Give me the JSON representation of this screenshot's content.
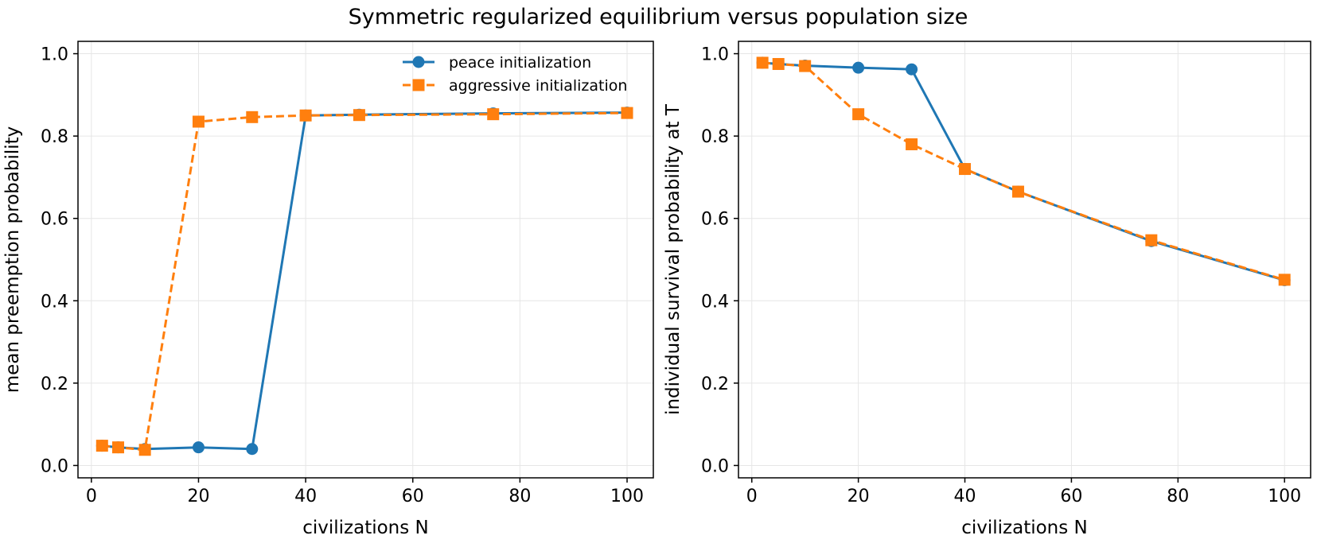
{
  "figure": {
    "suptitle": "Symmetric regularized equilibrium versus population size"
  },
  "colors": {
    "peace": "#1f77b4",
    "aggressive": "#ff7f0e",
    "grid": "#e6e6e6",
    "axes": "#000000"
  },
  "chart_data": [
    {
      "type": "line",
      "title": "",
      "xlabel": "civilizations N",
      "ylabel": "mean preemption probability",
      "xlim": [
        -2.5,
        104.9
      ],
      "ylim": [
        -0.03,
        1.03
      ],
      "xticks": [
        0,
        20,
        40,
        60,
        80,
        100
      ],
      "yticks": [
        0.0,
        0.2,
        0.4,
        0.6,
        0.8,
        1.0
      ],
      "ytick_labels": [
        "0.0",
        "0.2",
        "0.4",
        "0.6",
        "0.8",
        "1.0"
      ],
      "grid": true,
      "legend": {
        "placement": "upper right",
        "entries": [
          "peace initialization",
          "aggressive initialization"
        ]
      },
      "series": [
        {
          "name": "peace initialization",
          "color": "#1f77b4",
          "linestyle": "solid",
          "marker": "circle",
          "x": [
            2,
            5,
            10,
            20,
            30,
            40,
            50,
            75,
            100
          ],
          "y": [
            0.048,
            0.044,
            0.04,
            0.044,
            0.04,
            0.85,
            0.852,
            0.855,
            0.857
          ]
        },
        {
          "name": "aggressive initialization",
          "color": "#ff7f0e",
          "linestyle": "dashed",
          "marker": "square",
          "x": [
            2,
            5,
            10,
            20,
            30,
            40,
            50,
            75,
            100
          ],
          "y": [
            0.048,
            0.044,
            0.038,
            0.835,
            0.846,
            0.85,
            0.851,
            0.853,
            0.856
          ]
        }
      ]
    },
    {
      "type": "line",
      "title": "",
      "xlabel": "civilizations N",
      "ylabel": "individual survival probability at T",
      "xlim": [
        -2.5,
        104.9
      ],
      "ylim": [
        -0.03,
        1.03
      ],
      "xticks": [
        0,
        20,
        40,
        60,
        80,
        100
      ],
      "yticks": [
        0.0,
        0.2,
        0.4,
        0.6,
        0.8,
        1.0
      ],
      "ytick_labels": [
        "0.0",
        "0.2",
        "0.4",
        "0.6",
        "0.8",
        "1.0"
      ],
      "grid": true,
      "series": [
        {
          "name": "peace initialization",
          "color": "#1f77b4",
          "linestyle": "solid",
          "marker": "circle",
          "x": [
            2,
            5,
            10,
            20,
            30,
            40,
            50,
            75,
            100
          ],
          "y": [
            0.978,
            0.975,
            0.971,
            0.966,
            0.962,
            0.72,
            0.665,
            0.545,
            0.45
          ]
        },
        {
          "name": "aggressive initialization",
          "color": "#ff7f0e",
          "linestyle": "dashed",
          "marker": "square",
          "x": [
            2,
            5,
            10,
            20,
            30,
            40,
            50,
            75,
            100
          ],
          "y": [
            0.978,
            0.975,
            0.97,
            0.853,
            0.78,
            0.72,
            0.665,
            0.547,
            0.451
          ]
        }
      ]
    }
  ]
}
